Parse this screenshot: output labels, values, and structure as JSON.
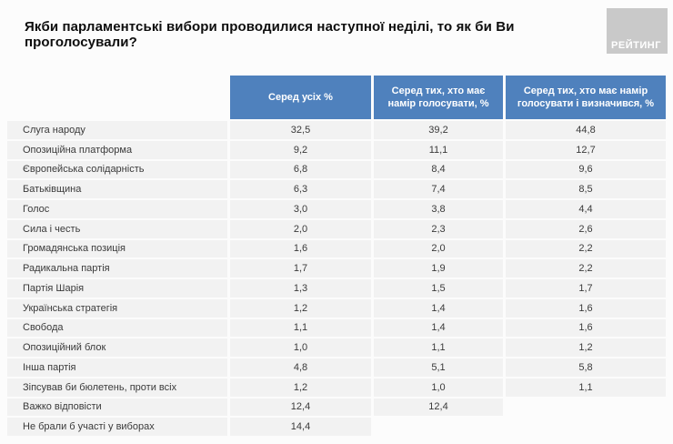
{
  "title": "Якби парламентські вибори проводилися наступної неділі, то як би Ви проголосували?",
  "logo": {
    "text": "РЕЙТИНГ"
  },
  "colors": {
    "header_bg": "#4f81bd",
    "header_text": "#ffffff",
    "row_bg": "#f2f2f2",
    "body_text": "#3a3a3a",
    "logo_bg": "#c9c9c9"
  },
  "chart_data": {
    "type": "table",
    "title": "Якби парламентські вибори проводилися наступної неділі, то як би Ви проголосували?",
    "columns": [
      "Серед усіх %",
      "Серед тих, хто має намір голосувати, %",
      "Серед тих, хто має намір голосувати і визначився, %"
    ],
    "rows": [
      {
        "label": "Слуга народу",
        "values": [
          "32,5",
          "39,2",
          "44,8"
        ]
      },
      {
        "label": "Опозиційна платформа",
        "values": [
          "9,2",
          "11,1",
          "12,7"
        ]
      },
      {
        "label": "Європейська солідарність",
        "values": [
          "6,8",
          "8,4",
          "9,6"
        ]
      },
      {
        "label": "Батьківщина",
        "values": [
          "6,3",
          "7,4",
          "8,5"
        ]
      },
      {
        "label": "Голос",
        "values": [
          "3,0",
          "3,8",
          "4,4"
        ]
      },
      {
        "label": "Сила і честь",
        "values": [
          "2,0",
          "2,3",
          "2,6"
        ]
      },
      {
        "label": "Громадянська позиція",
        "values": [
          "1,6",
          "2,0",
          "2,2"
        ]
      },
      {
        "label": "Радикальна партія",
        "values": [
          "1,7",
          "1,9",
          "2,2"
        ]
      },
      {
        "label": "Партія Шарія",
        "values": [
          "1,3",
          "1,5",
          "1,7"
        ]
      },
      {
        "label": "Українська стратегія",
        "values": [
          "1,2",
          "1,4",
          "1,6"
        ]
      },
      {
        "label": "Свобода",
        "values": [
          "1,1",
          "1,4",
          "1,6"
        ]
      },
      {
        "label": "Опозиційний блок",
        "values": [
          "1,0",
          "1,1",
          "1,2"
        ]
      },
      {
        "label": "Інша партія",
        "values": [
          "4,8",
          "5,1",
          "5,8"
        ]
      },
      {
        "label": "Зіпсував би бюлетень, проти всіх",
        "values": [
          "1,2",
          "1,0",
          "1,1"
        ]
      },
      {
        "label": "Важко відповісти",
        "values": [
          "12,4",
          "12,4",
          null
        ]
      },
      {
        "label": "Не брали б участі у виборах",
        "values": [
          "14,4",
          null,
          null
        ]
      }
    ]
  }
}
